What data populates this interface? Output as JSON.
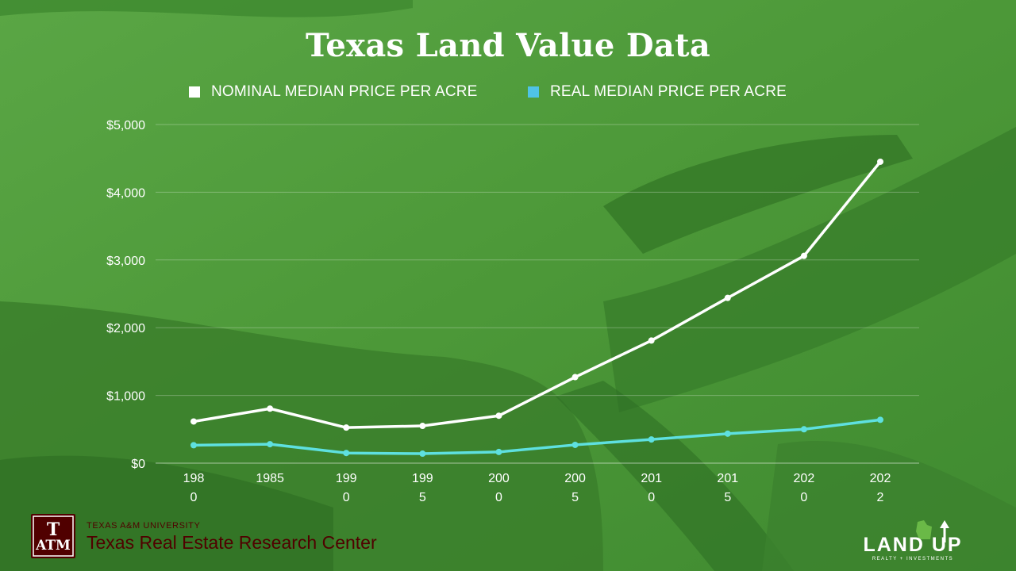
{
  "title": "Texas Land Value Data",
  "legend": [
    {
      "label": "NOMINAL MEDIAN PRICE PER ACRE",
      "color": "#ffffff"
    },
    {
      "label": "REAL MEDIAN PRICE PER ACRE",
      "color": "#4fc3e6"
    }
  ],
  "chart_data": {
    "type": "line",
    "title": "Texas Land Value Data",
    "x_tick_labels": [
      [
        "198",
        "0"
      ],
      [
        "1985",
        ""
      ],
      [
        "199",
        "0"
      ],
      [
        "199",
        "5"
      ],
      [
        "200",
        "0"
      ],
      [
        "200",
        "5"
      ],
      [
        "201",
        "0"
      ],
      [
        "201",
        "5"
      ],
      [
        "202",
        "0"
      ],
      [
        "202",
        "2"
      ]
    ],
    "x": [
      1980,
      1985,
      1990,
      1995,
      2000,
      2005,
      2010,
      2015,
      2020,
      2022
    ],
    "y_tick_labels": [
      "$0",
      "$1,000",
      "$2,000",
      "$3,000",
      "$4,000",
      "$5,000"
    ],
    "ylim": [
      0,
      5000
    ],
    "grid": true,
    "legend_position": "top",
    "series": [
      {
        "name": "NOMINAL MEDIAN PRICE PER ACRE",
        "color": "#ffffff",
        "values": [
          615,
          805,
          525,
          550,
          700,
          1270,
          1810,
          2440,
          3060,
          4450
        ]
      },
      {
        "name": "REAL MEDIAN PRICE PER ACRE",
        "color": "#5ee0e0",
        "values": [
          265,
          280,
          150,
          140,
          165,
          270,
          350,
          435,
          500,
          640
        ]
      }
    ]
  },
  "footer": {
    "university": "TEXAS A&M UNIVERSITY",
    "center": "Texas Real Estate Research Center",
    "logo_mark": "ATM",
    "brand_logo": "LAND UP",
    "brand_tagline": "REALTY + INVESTMENTS"
  },
  "colors": {
    "maroon": "#500000",
    "grass": "#4f9a3a"
  }
}
